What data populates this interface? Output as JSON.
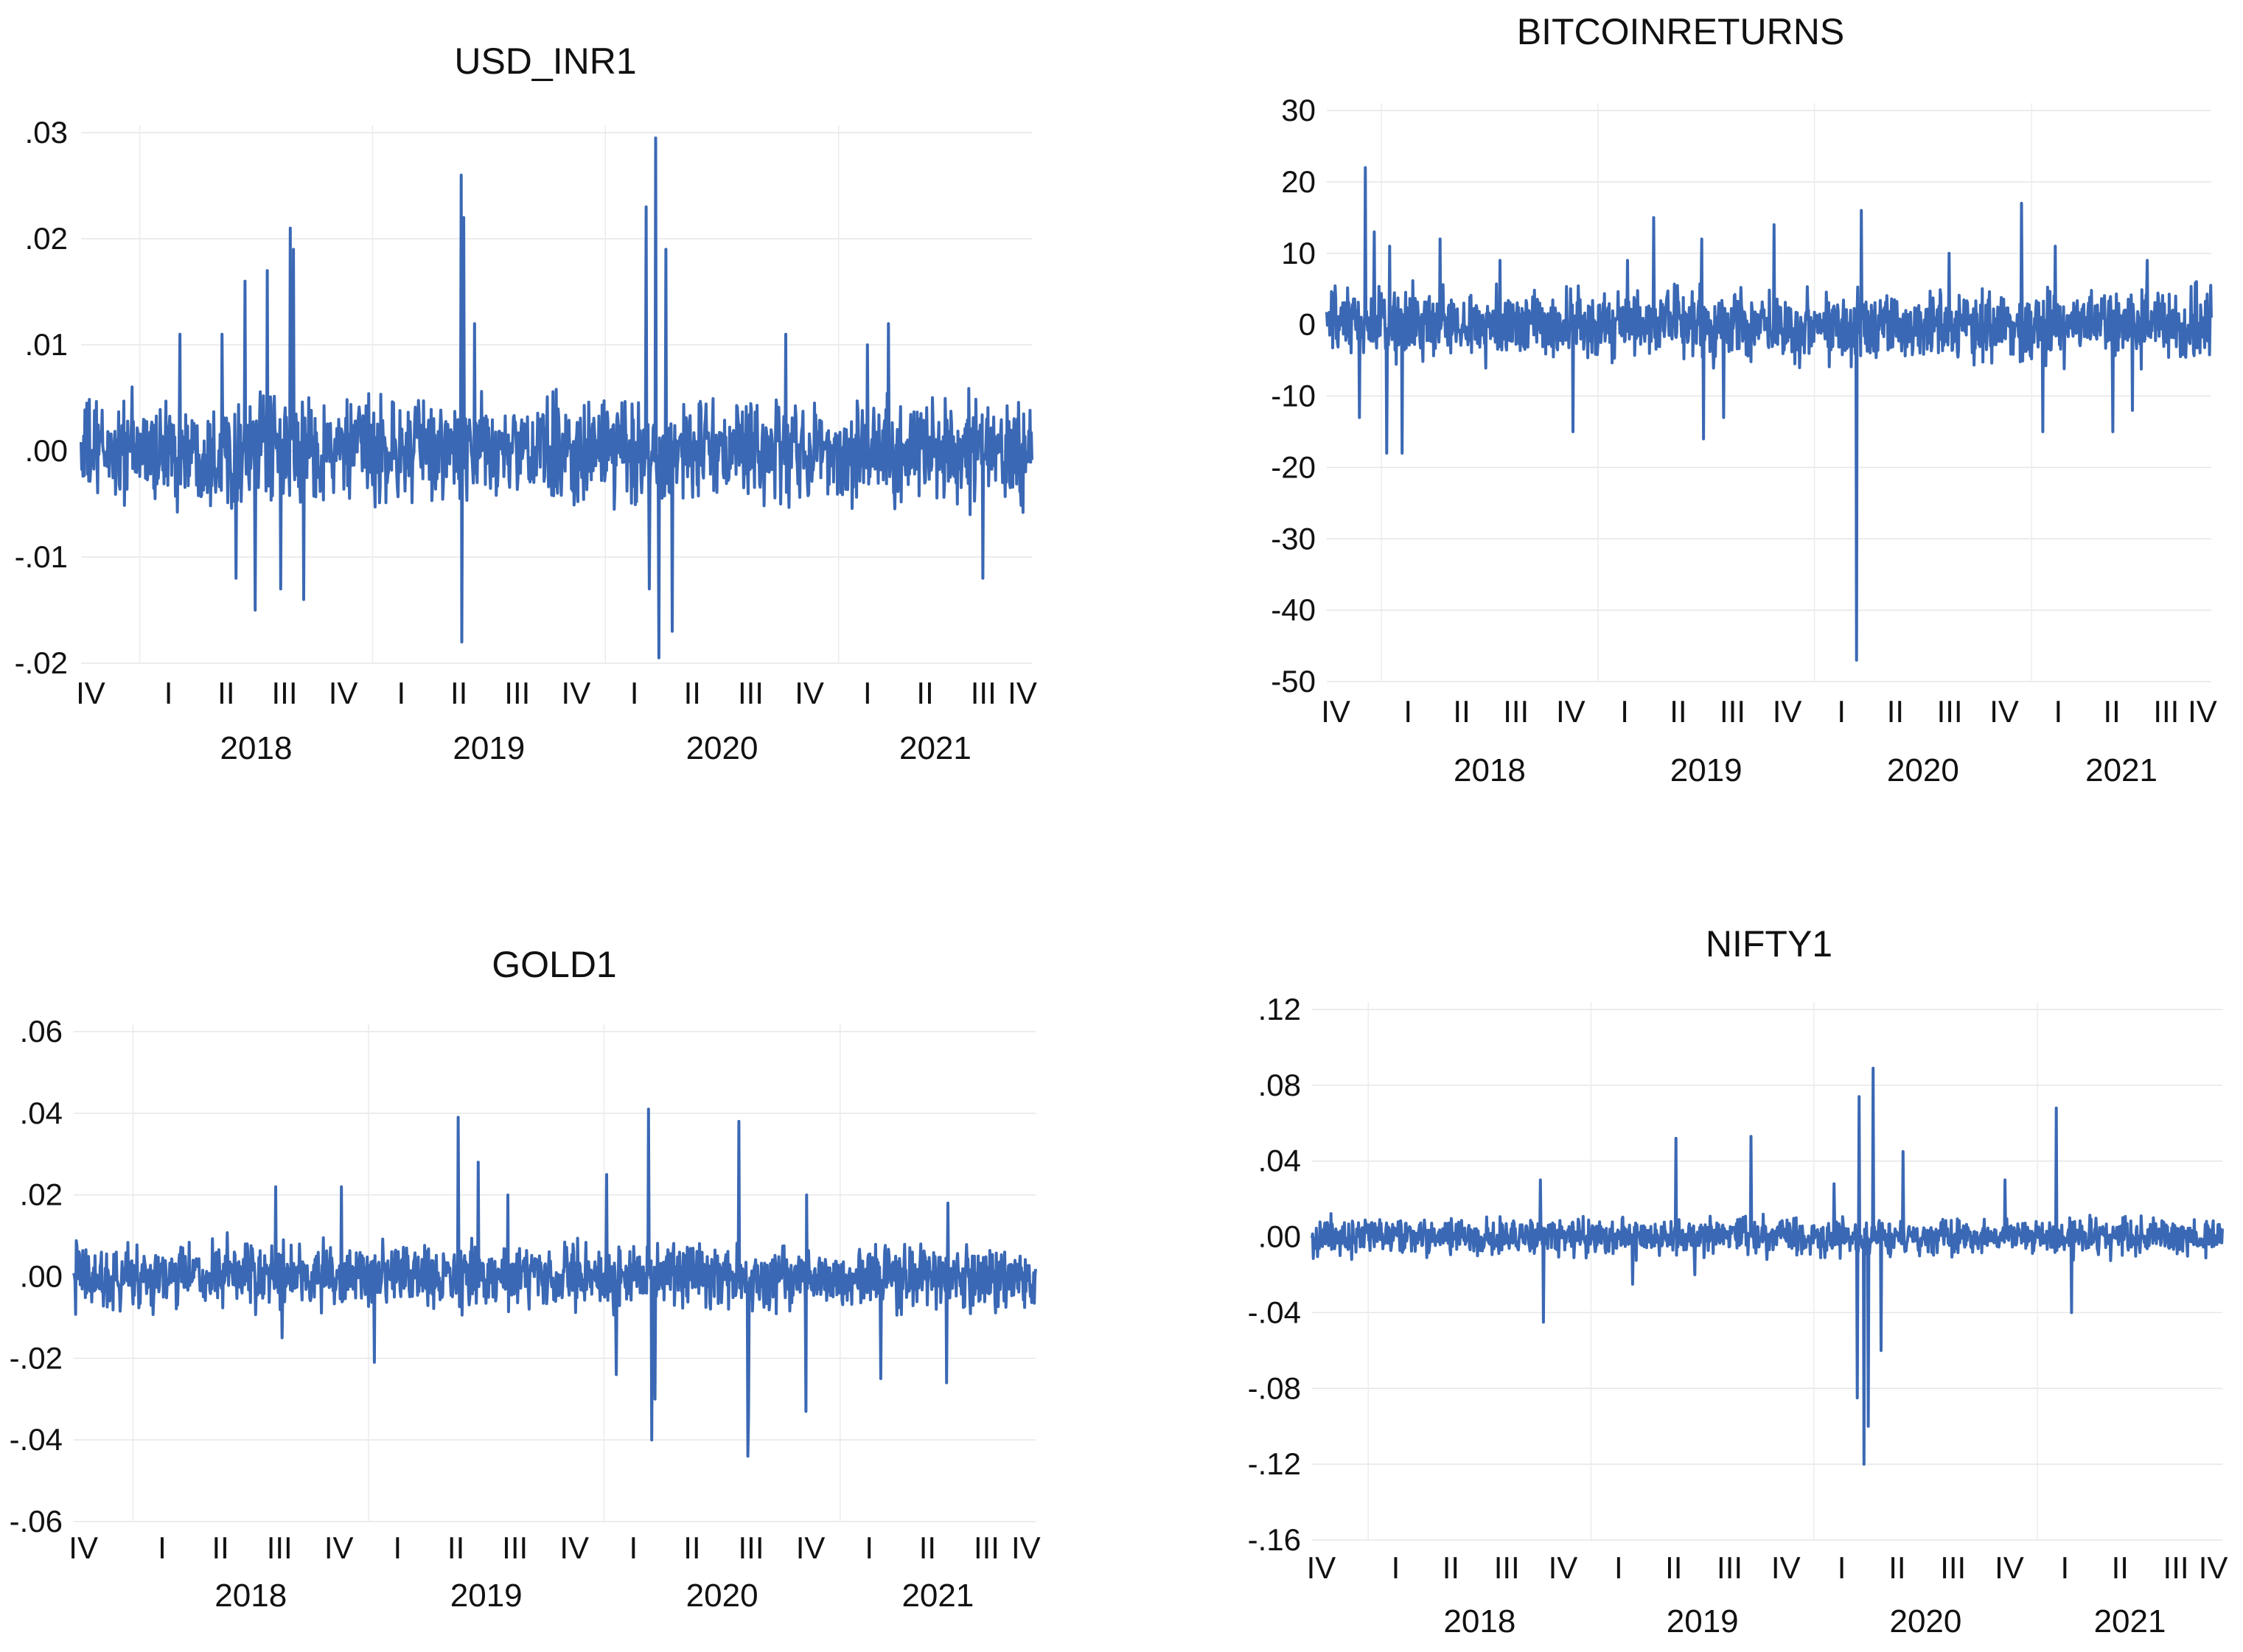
{
  "charts": [
    {
      "key": "usd_inr"
    },
    {
      "key": "bitcoin"
    },
    {
      "key": "gold"
    },
    {
      "key": "nifty"
    }
  ],
  "chart_data": [
    {
      "type": "line",
      "title": "USD_INR1",
      "xlabel": "",
      "ylabel": "",
      "series_color": "#3a68b4",
      "x_start": "2017-10-01",
      "x_end": "2021-10-31",
      "ylim": [
        -0.02,
        0.03
      ],
      "y_ticks": [
        ".03",
        ".02",
        ".01",
        ".00",
        "-.01",
        "-.02"
      ],
      "y_tick_values": [
        0.03,
        0.02,
        0.01,
        0.0,
        -0.01,
        -0.02
      ],
      "quarter_labels": [
        "IV",
        "I",
        "II",
        "III",
        "IV",
        "I",
        "II",
        "III",
        "IV",
        "I",
        "II",
        "III",
        "IV",
        "I",
        "II",
        "III",
        "IV"
      ],
      "years": [
        "2018",
        "2019",
        "2020",
        "2021"
      ],
      "grid": true,
      "typical_range": [
        -0.005,
        0.005
      ],
      "peaks": [
        {
          "x": "2018-06-15",
          "y": 0.016
        },
        {
          "x": "2018-07-20",
          "y": 0.017
        },
        {
          "x": "2018-08-25",
          "y": 0.021
        },
        {
          "x": "2018-08-30",
          "y": 0.019
        },
        {
          "x": "2018-03-05",
          "y": 0.011
        },
        {
          "x": "2018-05-10",
          "y": 0.011
        },
        {
          "x": "2019-05-20",
          "y": 0.026
        },
        {
          "x": "2019-05-24",
          "y": 0.022
        },
        {
          "x": "2019-06-10",
          "y": 0.012
        },
        {
          "x": "2020-03-05",
          "y": 0.023
        },
        {
          "x": "2020-03-20",
          "y": 0.0295
        },
        {
          "x": "2020-04-05",
          "y": 0.019
        },
        {
          "x": "2020-10-10",
          "y": 0.011
        },
        {
          "x": "2021-02-15",
          "y": 0.01
        },
        {
          "x": "2021-03-20",
          "y": 0.012
        },
        {
          "x": "2018-06-01",
          "y": -0.012
        },
        {
          "x": "2018-07-01",
          "y": -0.015
        },
        {
          "x": "2018-09-15",
          "y": -0.014
        },
        {
          "x": "2018-08-10",
          "y": -0.013
        },
        {
          "x": "2019-05-21",
          "y": -0.018
        },
        {
          "x": "2020-03-10",
          "y": -0.013
        },
        {
          "x": "2020-03-25",
          "y": -0.0195
        },
        {
          "x": "2020-04-15",
          "y": -0.017
        },
        {
          "x": "2021-08-15",
          "y": -0.012
        }
      ]
    },
    {
      "type": "line",
      "title": "BITCOINRETURNS",
      "xlabel": "",
      "ylabel": "",
      "series_color": "#3a68b4",
      "x_start": "2017-10-01",
      "x_end": "2021-10-31",
      "ylim": [
        -50,
        30
      ],
      "y_ticks": [
        "30",
        "20",
        "10",
        "0",
        "-10",
        "-20",
        "-30",
        "-40",
        "-50"
      ],
      "y_tick_values": [
        30,
        20,
        10,
        0,
        -10,
        -20,
        -30,
        -40,
        -50
      ],
      "quarter_labels": [
        "IV",
        "I",
        "II",
        "III",
        "IV",
        "I",
        "II",
        "III",
        "IV",
        "I",
        "II",
        "III",
        "IV",
        "I",
        "II",
        "III",
        "IV"
      ],
      "years": [
        "2018",
        "2019",
        "2020",
        "2021"
      ],
      "grid": true,
      "typical_range": [
        -5,
        5
      ],
      "peaks": [
        {
          "x": "2017-12-05",
          "y": 22
        },
        {
          "x": "2017-12-20",
          "y": 13
        },
        {
          "x": "2018-01-15",
          "y": 11
        },
        {
          "x": "2018-04-10",
          "y": 12
        },
        {
          "x": "2018-07-20",
          "y": 9
        },
        {
          "x": "2019-02-20",
          "y": 9
        },
        {
          "x": "2019-04-05",
          "y": 15
        },
        {
          "x": "2019-06-25",
          "y": 12
        },
        {
          "x": "2019-10-25",
          "y": 14
        },
        {
          "x": "2020-03-20",
          "y": 16
        },
        {
          "x": "2020-08-15",
          "y": 10
        },
        {
          "x": "2020-12-15",
          "y": 17
        },
        {
          "x": "2021-02-10",
          "y": 11
        },
        {
          "x": "2021-07-15",
          "y": 9
        },
        {
          "x": "2017-11-25",
          "y": -13
        },
        {
          "x": "2018-01-10",
          "y": -18
        },
        {
          "x": "2018-02-05",
          "y": -18
        },
        {
          "x": "2018-11-20",
          "y": -15
        },
        {
          "x": "2019-06-28",
          "y": -16
        },
        {
          "x": "2019-08-01",
          "y": -13
        },
        {
          "x": "2020-03-12",
          "y": -47
        },
        {
          "x": "2021-01-20",
          "y": -15
        },
        {
          "x": "2021-05-18",
          "y": -15
        },
        {
          "x": "2021-06-20",
          "y": -12
        }
      ]
    },
    {
      "type": "line",
      "title": "GOLD1",
      "xlabel": "",
      "ylabel": "",
      "series_color": "#3a68b4",
      "x_start": "2017-10-01",
      "x_end": "2021-10-31",
      "ylim": [
        -0.06,
        0.06
      ],
      "y_ticks": [
        ".06",
        ".04",
        ".02",
        ".00",
        "-.02",
        "-.04",
        "-.06"
      ],
      "y_tick_values": [
        0.06,
        0.04,
        0.02,
        0.0,
        -0.02,
        -0.04,
        -0.06
      ],
      "quarter_labels": [
        "IV",
        "I",
        "II",
        "III",
        "IV",
        "I",
        "II",
        "III",
        "IV",
        "I",
        "II",
        "III",
        "IV",
        "I",
        "II",
        "III",
        "IV"
      ],
      "years": [
        "2018",
        "2019",
        "2020",
        "2021"
      ],
      "grid": true,
      "typical_range": [
        -0.008,
        0.008
      ],
      "peaks": [
        {
          "x": "2018-08-10",
          "y": 0.022
        },
        {
          "x": "2018-11-20",
          "y": 0.022
        },
        {
          "x": "2019-05-20",
          "y": 0.039
        },
        {
          "x": "2019-06-20",
          "y": 0.028
        },
        {
          "x": "2019-08-05",
          "y": 0.02
        },
        {
          "x": "2020-01-05",
          "y": 0.025
        },
        {
          "x": "2020-03-10",
          "y": 0.041
        },
        {
          "x": "2020-07-28",
          "y": 0.038
        },
        {
          "x": "2020-11-10",
          "y": 0.02
        },
        {
          "x": "2021-06-17",
          "y": 0.018
        },
        {
          "x": "2019-01-10",
          "y": -0.021
        },
        {
          "x": "2020-01-20",
          "y": -0.024
        },
        {
          "x": "2020-03-15",
          "y": -0.04
        },
        {
          "x": "2020-03-20",
          "y": -0.03
        },
        {
          "x": "2020-08-11",
          "y": -0.044
        },
        {
          "x": "2020-08-12",
          "y": -0.034
        },
        {
          "x": "2020-11-09",
          "y": -0.033
        },
        {
          "x": "2021-03-05",
          "y": -0.025
        },
        {
          "x": "2021-06-15",
          "y": -0.026
        },
        {
          "x": "2018-08-20",
          "y": -0.015
        }
      ]
    },
    {
      "type": "line",
      "title": "NIFTY1",
      "xlabel": "",
      "ylabel": "",
      "series_color": "#3a68b4",
      "x_start": "2017-10-01",
      "x_end": "2021-10-31",
      "ylim": [
        -0.16,
        0.12
      ],
      "y_ticks": [
        ".12",
        ".08",
        ".04",
        ".00",
        "-.04",
        "-.08",
        "-.12",
        "-.16"
      ],
      "y_tick_values": [
        0.12,
        0.08,
        0.04,
        0.0,
        -0.04,
        -0.08,
        -0.12,
        -0.16
      ],
      "quarter_labels": [
        "IV",
        "I",
        "II",
        "III",
        "IV",
        "I",
        "II",
        "III",
        "IV",
        "I",
        "II",
        "III",
        "IV",
        "I",
        "II",
        "III",
        "IV"
      ],
      "years": [
        "2018",
        "2019",
        "2020",
        "2021"
      ],
      "grid": true,
      "typical_range": [
        -0.01,
        0.01
      ],
      "peaks": [
        {
          "x": "2018-10-10",
          "y": 0.03
        },
        {
          "x": "2019-05-20",
          "y": 0.052
        },
        {
          "x": "2019-09-20",
          "y": 0.053
        },
        {
          "x": "2020-03-15",
          "y": 0.074
        },
        {
          "x": "2020-04-07",
          "y": 0.089
        },
        {
          "x": "2020-02-03",
          "y": 0.028
        },
        {
          "x": "2020-05-26",
          "y": 0.045
        },
        {
          "x": "2020-11-09",
          "y": 0.03
        },
        {
          "x": "2021-02-01",
          "y": 0.068
        },
        {
          "x": "2018-10-15",
          "y": -0.045
        },
        {
          "x": "2020-03-12",
          "y": -0.085
        },
        {
          "x": "2020-03-23",
          "y": -0.12
        },
        {
          "x": "2020-03-30",
          "y": -0.1
        },
        {
          "x": "2020-04-20",
          "y": -0.06
        },
        {
          "x": "2021-02-26",
          "y": -0.04
        },
        {
          "x": "2019-03-10",
          "y": -0.025
        },
        {
          "x": "2019-06-20",
          "y": -0.02
        }
      ]
    }
  ]
}
